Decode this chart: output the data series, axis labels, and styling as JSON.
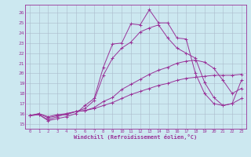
{
  "xlabel": "Windchill (Refroidissement éolien,°C)",
  "bg_color": "#cce8f0",
  "line_color": "#993399",
  "grid_color": "#aabbcc",
  "x_ticks": [
    0,
    1,
    2,
    3,
    4,
    5,
    6,
    7,
    8,
    9,
    10,
    11,
    12,
    13,
    14,
    15,
    16,
    17,
    18,
    19,
    20,
    21,
    22,
    23
  ],
  "y_ticks": [
    15,
    16,
    17,
    18,
    19,
    20,
    21,
    22,
    23,
    24,
    25,
    26
  ],
  "xlim": [
    -0.5,
    23.5
  ],
  "ylim": [
    14.5,
    26.8
  ],
  "series": [
    [
      15.8,
      15.9,
      15.3,
      15.5,
      15.7,
      16.0,
      16.8,
      17.5,
      20.6,
      22.9,
      23.0,
      24.9,
      24.8,
      26.3,
      25.0,
      25.0,
      23.5,
      23.4,
      20.0,
      18.0,
      17.0,
      16.8,
      17.0,
      19.3
    ],
    [
      15.8,
      15.9,
      15.4,
      15.7,
      16.0,
      16.2,
      16.5,
      17.3,
      19.8,
      21.5,
      22.5,
      23.1,
      24.1,
      24.5,
      24.8,
      23.5,
      22.5,
      22.0,
      21.5,
      19.1,
      17.6,
      16.8,
      17.0,
      17.5
    ],
    [
      15.8,
      16.0,
      15.6,
      15.8,
      15.9,
      16.2,
      16.3,
      16.6,
      17.2,
      17.6,
      18.4,
      18.9,
      19.4,
      19.9,
      20.3,
      20.6,
      21.0,
      21.2,
      21.3,
      21.1,
      20.5,
      19.3,
      18.0,
      18.5
    ],
    [
      15.8,
      16.0,
      15.7,
      15.9,
      16.0,
      16.2,
      16.3,
      16.5,
      16.8,
      17.1,
      17.5,
      17.9,
      18.2,
      18.5,
      18.8,
      19.0,
      19.3,
      19.5,
      19.6,
      19.7,
      19.8,
      19.8,
      19.8,
      19.9
    ]
  ]
}
